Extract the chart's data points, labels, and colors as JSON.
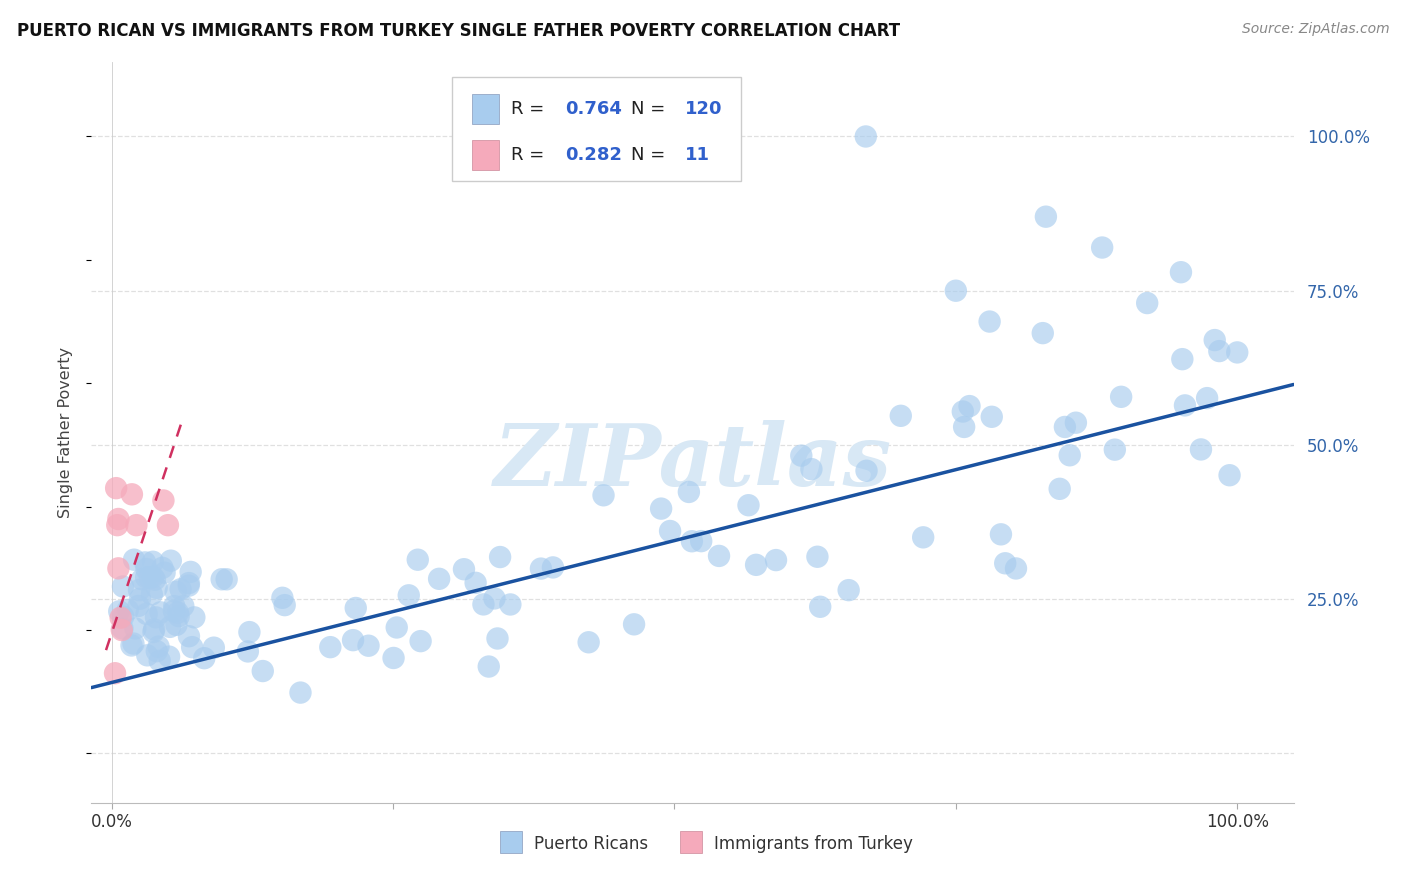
{
  "title": "PUERTO RICAN VS IMMIGRANTS FROM TURKEY SINGLE FATHER POVERTY CORRELATION CHART",
  "source": "Source: ZipAtlas.com",
  "ylabel": "Single Father Poverty",
  "legend_blue_r": "0.764",
  "legend_blue_n": "120",
  "legend_pink_r": "0.282",
  "legend_pink_n": "11",
  "legend_label_blue": "Puerto Ricans",
  "legend_label_pink": "Immigrants from Turkey",
  "blue_color": "#A8CCEE",
  "pink_color": "#F5AABB",
  "blue_line_color": "#1A52A0",
  "pink_line_color": "#D03060",
  "blue_r_color": "#3060CC",
  "pink_r_color": "#3060CC",
  "watermark_color": "#D8E8F5",
  "watermark": "ZIPatlas",
  "grid_color": "#E0E0E0",
  "title_color": "#111111",
  "source_color": "#888888",
  "axis_label_color": "#3366AA",
  "tick_color": "#333333",
  "blue_slope": 0.46,
  "blue_intercept": 0.115,
  "pink_slope": 5.5,
  "pink_intercept": 0.195,
  "xlim_min": -0.018,
  "xlim_max": 1.05,
  "ylim_min": -0.08,
  "ylim_max": 1.12
}
